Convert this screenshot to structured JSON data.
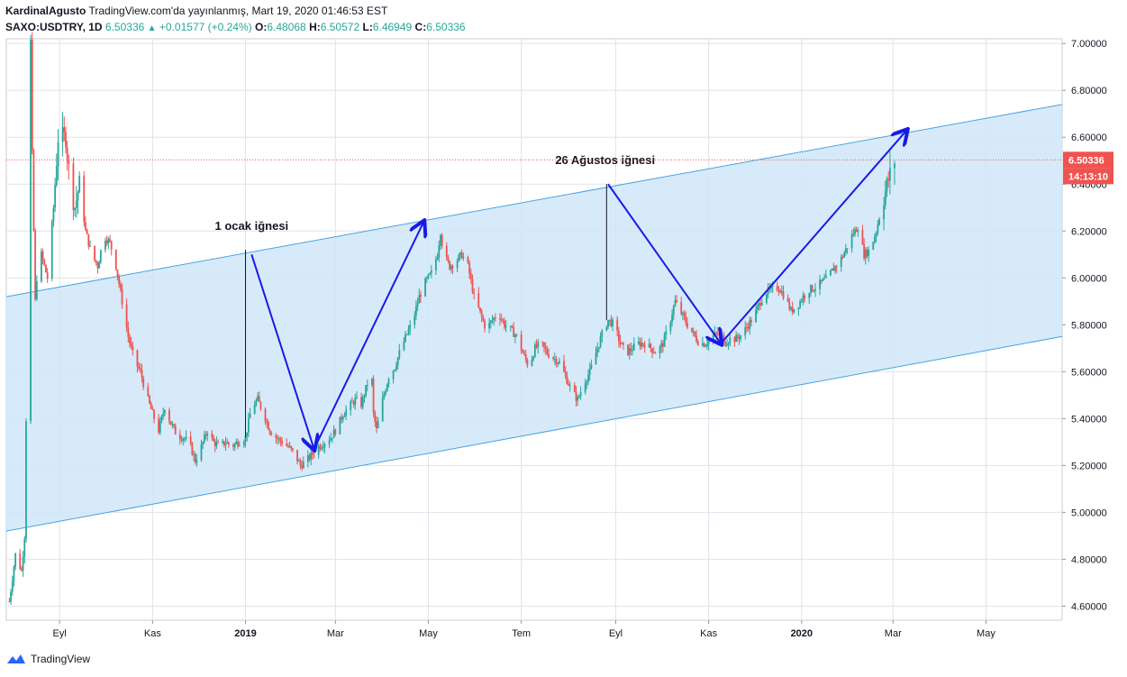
{
  "header": {
    "publisher": "KardinalAgusto",
    "published_line": "TradingView.com'da yayınlanmış, Mart 19, 2020 01:46:53 EST",
    "symbol": "SAXO:USDTRY, 1D",
    "last": "6.50336",
    "change": "+0.01577 (+0.24%)",
    "o_label": "O:",
    "o_value": "6.48068",
    "h_label": "H:",
    "h_value": "6.50572",
    "l_label": "L:",
    "l_value": "6.46949",
    "c_label": "C:",
    "c_value": "6.50336"
  },
  "footer": {
    "brand": "TradingView"
  },
  "price_tag": {
    "price": "6.50336",
    "countdown": "14:13:10"
  },
  "colors": {
    "up": "#26a69a",
    "down": "#ef5350",
    "channel_fill": "#cfe6f8",
    "channel_line": "#4aa3df",
    "arrow": "#1a1ae6",
    "price_line": "#ef5350",
    "grid": "#e0e3eb"
  },
  "chart_data": {
    "type": "candlestick",
    "symbol": "SAXO:USDTRY",
    "interval": "1D",
    "y_ticks": [
      "7.00000",
      "6.80000",
      "6.60000",
      "6.40000",
      "6.20000",
      "6.00000",
      "5.80000",
      "5.60000",
      "5.40000",
      "5.20000",
      "5.00000",
      "4.80000",
      "4.60000"
    ],
    "ylim": [
      4.54,
      7.02
    ],
    "x_ticks": [
      {
        "label": "Eyl",
        "bold": false
      },
      {
        "label": "Kas",
        "bold": false
      },
      {
        "label": "2019",
        "bold": true
      },
      {
        "label": "Mar",
        "bold": false
      },
      {
        "label": "May",
        "bold": false
      },
      {
        "label": "Tem",
        "bold": false
      },
      {
        "label": "Eyl",
        "bold": false
      },
      {
        "label": "Kas",
        "bold": false
      },
      {
        "label": "2020",
        "bold": true
      },
      {
        "label": "Mar",
        "bold": false
      },
      {
        "label": "May",
        "bold": false
      }
    ],
    "price_path": [
      [
        "2018-07-30",
        4.62
      ],
      [
        "2018-08-03",
        4.82
      ],
      [
        "2018-08-07",
        4.75
      ],
      [
        "2018-08-09",
        4.9
      ],
      [
        "2018-08-10",
        5.4
      ],
      [
        "2018-08-12",
        6.4
      ],
      [
        "2018-08-13",
        7.0
      ],
      [
        "2018-08-14",
        6.5
      ],
      [
        "2018-08-16",
        5.9
      ],
      [
        "2018-08-17",
        6.0
      ],
      [
        "2018-08-20",
        6.1
      ],
      [
        "2018-08-24",
        6.0
      ],
      [
        "2018-08-28",
        6.3
      ],
      [
        "2018-08-31",
        6.6
      ],
      [
        "2018-09-05",
        6.6
      ],
      [
        "2018-09-08",
        6.4
      ],
      [
        "2018-09-11",
        6.3
      ],
      [
        "2018-09-14",
        6.4
      ],
      [
        "2018-09-18",
        6.2
      ],
      [
        "2018-09-22",
        6.1
      ],
      [
        "2018-09-26",
        6.05
      ],
      [
        "2018-09-30",
        6.18
      ],
      [
        "2018-10-04",
        6.15
      ],
      [
        "2018-10-08",
        6.05
      ],
      [
        "2018-10-12",
        5.9
      ],
      [
        "2018-10-16",
        5.75
      ],
      [
        "2018-10-20",
        5.65
      ],
      [
        "2018-10-24",
        5.6
      ],
      [
        "2018-10-28",
        5.5
      ],
      [
        "2018-11-01",
        5.42
      ],
      [
        "2018-11-05",
        5.35
      ],
      [
        "2018-11-09",
        5.45
      ],
      [
        "2018-11-13",
        5.38
      ],
      [
        "2018-11-17",
        5.33
      ],
      [
        "2018-11-21",
        5.32
      ],
      [
        "2018-11-25",
        5.3
      ],
      [
        "2018-11-29",
        5.22
      ],
      [
        "2018-12-03",
        5.28
      ],
      [
        "2018-12-07",
        5.35
      ],
      [
        "2018-12-11",
        5.3
      ],
      [
        "2018-12-15",
        5.28
      ],
      [
        "2018-12-19",
        5.3
      ],
      [
        "2018-12-23",
        5.28
      ],
      [
        "2018-12-27",
        5.3
      ],
      [
        "2019-01-01",
        5.32
      ],
      [
        "2019-01-05",
        5.45
      ],
      [
        "2019-01-09",
        5.48
      ],
      [
        "2019-01-13",
        5.42
      ],
      [
        "2019-01-17",
        5.35
      ],
      [
        "2019-01-21",
        5.32
      ],
      [
        "2019-01-25",
        5.3
      ],
      [
        "2019-01-29",
        5.28
      ],
      [
        "2019-02-02",
        5.25
      ],
      [
        "2019-02-06",
        5.2
      ],
      [
        "2019-02-10",
        5.22
      ],
      [
        "2019-02-14",
        5.25
      ],
      [
        "2019-02-18",
        5.28
      ],
      [
        "2019-02-22",
        5.3
      ],
      [
        "2019-02-26",
        5.32
      ],
      [
        "2019-03-02",
        5.36
      ],
      [
        "2019-03-06",
        5.42
      ],
      [
        "2019-03-10",
        5.45
      ],
      [
        "2019-03-14",
        5.48
      ],
      [
        "2019-03-18",
        5.46
      ],
      [
        "2019-03-22",
        5.55
      ],
      [
        "2019-03-24",
        5.7
      ],
      [
        "2019-03-26",
        5.42
      ],
      [
        "2019-03-28",
        5.35
      ],
      [
        "2019-04-01",
        5.48
      ],
      [
        "2019-04-05",
        5.58
      ],
      [
        "2019-04-09",
        5.62
      ],
      [
        "2019-04-13",
        5.7
      ],
      [
        "2019-04-17",
        5.76
      ],
      [
        "2019-04-21",
        5.82
      ],
      [
        "2019-04-25",
        5.92
      ],
      [
        "2019-04-29",
        5.98
      ],
      [
        "2019-05-03",
        6.02
      ],
      [
        "2019-05-07",
        6.1
      ],
      [
        "2019-05-09",
        6.2
      ],
      [
        "2019-05-11",
        6.1
      ],
      [
        "2019-05-15",
        6.05
      ],
      [
        "2019-05-19",
        6.07
      ],
      [
        "2019-05-23",
        6.1
      ],
      [
        "2019-05-27",
        6.05
      ],
      [
        "2019-05-31",
        5.92
      ],
      [
        "2019-06-04",
        5.85
      ],
      [
        "2019-06-08",
        5.78
      ],
      [
        "2019-06-12",
        5.82
      ],
      [
        "2019-06-16",
        5.85
      ],
      [
        "2019-06-20",
        5.8
      ],
      [
        "2019-06-24",
        5.78
      ],
      [
        "2019-06-28",
        5.75
      ],
      [
        "2019-07-02",
        5.68
      ],
      [
        "2019-07-06",
        5.62
      ],
      [
        "2019-07-10",
        5.7
      ],
      [
        "2019-07-14",
        5.72
      ],
      [
        "2019-07-18",
        5.68
      ],
      [
        "2019-07-22",
        5.66
      ],
      [
        "2019-07-26",
        5.64
      ],
      [
        "2019-07-30",
        5.58
      ],
      [
        "2019-08-03",
        5.52
      ],
      [
        "2019-08-07",
        5.48
      ],
      [
        "2019-08-11",
        5.55
      ],
      [
        "2019-08-15",
        5.6
      ],
      [
        "2019-08-19",
        5.68
      ],
      [
        "2019-08-23",
        5.76
      ],
      [
        "2019-08-27",
        5.82
      ],
      [
        "2019-08-31",
        5.8
      ],
      [
        "2019-09-04",
        5.72
      ],
      [
        "2019-09-08",
        5.68
      ],
      [
        "2019-09-12",
        5.7
      ],
      [
        "2019-09-16",
        5.72
      ],
      [
        "2019-09-20",
        5.72
      ],
      [
        "2019-09-24",
        5.7
      ],
      [
        "2019-09-28",
        5.68
      ],
      [
        "2019-10-02",
        5.72
      ],
      [
        "2019-10-06",
        5.8
      ],
      [
        "2019-10-10",
        5.9
      ],
      [
        "2019-10-14",
        5.85
      ],
      [
        "2019-10-18",
        5.8
      ],
      [
        "2019-10-22",
        5.76
      ],
      [
        "2019-10-26",
        5.72
      ],
      [
        "2019-10-30",
        5.72
      ],
      [
        "2019-11-03",
        5.75
      ],
      [
        "2019-11-07",
        5.76
      ],
      [
        "2019-11-11",
        5.72
      ],
      [
        "2019-11-15",
        5.74
      ],
      [
        "2019-11-19",
        5.74
      ],
      [
        "2019-11-23",
        5.76
      ],
      [
        "2019-11-27",
        5.8
      ],
      [
        "2019-12-01",
        5.84
      ],
      [
        "2019-12-05",
        5.9
      ],
      [
        "2019-12-09",
        5.94
      ],
      [
        "2019-12-13",
        5.95
      ],
      [
        "2019-12-17",
        5.96
      ],
      [
        "2019-12-21",
        5.92
      ],
      [
        "2019-12-25",
        5.86
      ],
      [
        "2019-12-29",
        5.88
      ],
      [
        "2020-01-02",
        5.92
      ],
      [
        "2020-01-06",
        5.95
      ],
      [
        "2020-01-10",
        5.96
      ],
      [
        "2020-01-14",
        5.98
      ],
      [
        "2020-01-18",
        6.0
      ],
      [
        "2020-01-22",
        6.04
      ],
      [
        "2020-01-26",
        6.07
      ],
      [
        "2020-01-30",
        6.12
      ],
      [
        "2020-02-03",
        6.18
      ],
      [
        "2020-02-07",
        6.22
      ],
      [
        "2020-02-11",
        6.1
      ],
      [
        "2020-02-15",
        6.12
      ],
      [
        "2020-02-19",
        6.2
      ],
      [
        "2020-02-23",
        6.32
      ],
      [
        "2020-02-27",
        6.42
      ],
      [
        "2020-03-02",
        6.5
      ]
    ],
    "channel": {
      "upper": [
        [
          "2018-07-28",
          5.92
        ],
        [
          "2020-06-20",
          6.74
        ]
      ],
      "lower": [
        [
          "2018-07-28",
          4.92
        ],
        [
          "2020-06-20",
          5.75
        ]
      ]
    },
    "annotations": [
      {
        "text": "1 ocak iğnesi",
        "date": "2019-01-01",
        "price": 6.22
      },
      {
        "text": "26 Ağustos iğnesi",
        "date": "2019-08-26",
        "price": 6.5
      }
    ],
    "price_line": 6.50336
  }
}
